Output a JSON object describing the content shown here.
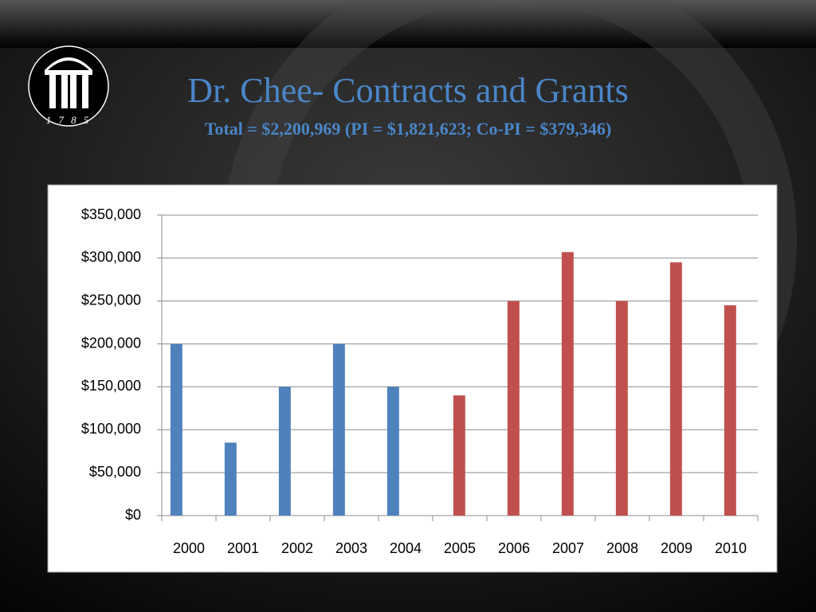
{
  "chart_data": {
    "type": "bar",
    "title": "Dr. Chee- Contracts and Grants",
    "subtitle": "Total = $2,200,969 (PI = $1,821,623; Co-PI = $379,346)",
    "logo_text": "1 7 8 5",
    "categories": [
      "2000",
      "2001",
      "2002",
      "2003",
      "2004",
      "2005",
      "2006",
      "2007",
      "2008",
      "2009",
      "2010"
    ],
    "series": [
      {
        "color": "#4f81bd",
        "values": [
          200000,
          85000,
          150000,
          200000,
          150000,
          null,
          null,
          null,
          null,
          null,
          null
        ]
      },
      {
        "color": "#c0504d",
        "values": [
          null,
          null,
          null,
          null,
          null,
          140000,
          250000,
          307000,
          250000,
          295000,
          245000
        ]
      }
    ],
    "ylim": [
      0,
      350000
    ],
    "yticks": [
      {
        "value": 0,
        "label": "$0"
      },
      {
        "value": 50000,
        "label": "$50,000"
      },
      {
        "value": 100000,
        "label": "$100,000"
      },
      {
        "value": 150000,
        "label": "$150,000"
      },
      {
        "value": 200000,
        "label": "$200,000"
      },
      {
        "value": 250000,
        "label": "$250,000"
      },
      {
        "value": 300000,
        "label": "$300,000"
      },
      {
        "value": 350000,
        "label": "$350,000"
      }
    ],
    "grid": true
  }
}
